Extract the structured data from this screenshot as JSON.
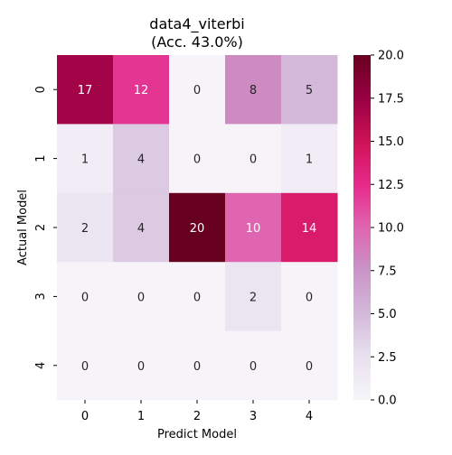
{
  "chart_data": {
    "type": "heatmap",
    "title": "data4_viterbi",
    "subtitle": "(Acc. 43.0%)",
    "xlabel": "Predict Model",
    "ylabel": "Actual Model",
    "x_categories": [
      "0",
      "1",
      "2",
      "3",
      "4"
    ],
    "y_categories": [
      "0",
      "1",
      "2",
      "3",
      "4"
    ],
    "values": [
      [
        17,
        12,
        0,
        8,
        5
      ],
      [
        1,
        4,
        0,
        0,
        1
      ],
      [
        2,
        4,
        20,
        10,
        14
      ],
      [
        0,
        0,
        0,
        2,
        0
      ],
      [
        0,
        0,
        0,
        0,
        0
      ]
    ],
    "vmin": 0,
    "vmax": 20,
    "colorbar_ticks": [
      "0.0",
      "2.5",
      "5.0",
      "7.5",
      "10.0",
      "12.5",
      "15.0",
      "17.5",
      "20.0"
    ],
    "colormap": "PuRd",
    "grid": false,
    "legend": "colorbar-right"
  }
}
